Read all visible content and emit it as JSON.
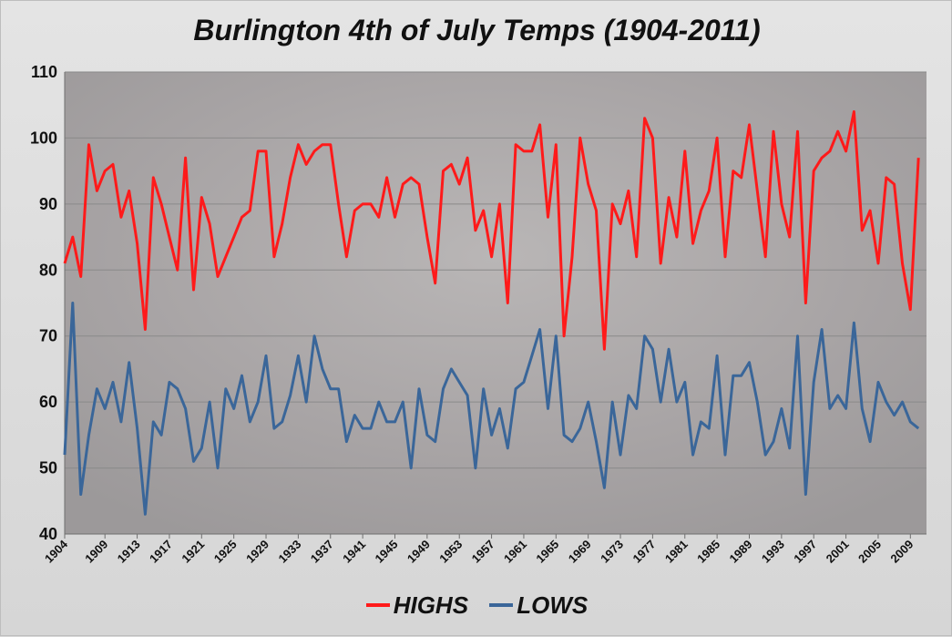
{
  "chart_data": {
    "type": "line",
    "title": "Burlington 4th of July Temps (1904-2011)",
    "xlabel": "",
    "ylabel": "",
    "xlim": [
      1904,
      2011
    ],
    "ylim": [
      40,
      110
    ],
    "y_ticks": [
      40,
      50,
      60,
      70,
      80,
      90,
      100,
      110
    ],
    "x_ticks": [
      1904,
      1909,
      1913,
      1917,
      1921,
      1925,
      1929,
      1933,
      1937,
      1941,
      1945,
      1949,
      1953,
      1957,
      1961,
      1965,
      1969,
      1973,
      1977,
      1981,
      1985,
      1989,
      1993,
      1997,
      2001,
      2005,
      2009
    ],
    "grid": "horizontal",
    "legend_position": "bottom",
    "x_start": 1904,
    "series": [
      {
        "name": "HIGHS",
        "color": "#ff1a1a",
        "values": [
          81,
          85,
          79,
          99,
          92,
          95,
          96,
          88,
          92,
          84,
          71,
          94,
          90,
          85,
          80,
          97,
          77,
          91,
          87,
          79,
          82,
          85,
          88,
          89,
          98,
          98,
          82,
          87,
          94,
          99,
          96,
          98,
          99,
          99,
          90,
          82,
          89,
          90,
          90,
          88,
          94,
          88,
          93,
          94,
          93,
          85,
          78,
          95,
          96,
          93,
          97,
          86,
          89,
          82,
          90,
          75,
          99,
          98,
          98,
          102,
          88,
          99,
          70,
          82,
          100,
          93,
          89,
          68,
          90,
          87,
          92,
          82,
          103,
          100,
          81,
          91,
          85,
          98,
          84,
          89,
          92,
          100,
          82,
          95,
          94,
          102,
          92,
          82,
          101,
          90,
          85,
          101,
          75,
          95,
          97,
          98,
          101,
          98,
          104,
          86,
          89,
          81,
          94,
          93,
          81,
          74,
          97
        ]
      },
      {
        "name": "LOWS",
        "color": "#3a6699",
        "values": [
          52,
          75,
          46,
          55,
          62,
          59,
          63,
          57,
          66,
          56,
          43,
          57,
          55,
          63,
          62,
          59,
          51,
          53,
          60,
          50,
          62,
          59,
          64,
          57,
          60,
          67,
          56,
          57,
          61,
          67,
          60,
          70,
          65,
          62,
          62,
          54,
          58,
          56,
          56,
          60,
          57,
          57,
          60,
          50,
          62,
          55,
          54,
          62,
          65,
          63,
          61,
          50,
          62,
          55,
          59,
          53,
          62,
          63,
          67,
          71,
          59,
          70,
          55,
          54,
          56,
          60,
          54,
          47,
          60,
          52,
          61,
          59,
          70,
          68,
          60,
          68,
          60,
          63,
          52,
          57,
          56,
          67,
          52,
          64,
          64,
          66,
          60,
          52,
          54,
          59,
          53,
          70,
          46,
          63,
          71,
          59,
          61,
          59,
          72,
          59,
          54,
          63,
          60,
          58,
          60,
          57,
          56
        ]
      }
    ]
  }
}
